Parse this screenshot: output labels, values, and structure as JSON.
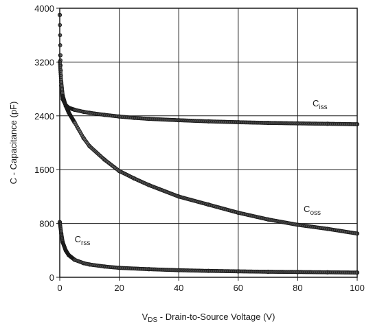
{
  "chart_data": {
    "type": "scatter",
    "xlabel": "V_DS - Drain-to-Source Voltage (V)",
    "ylabel": "C - Capacitance (pF)",
    "xlim": [
      0,
      100
    ],
    "ylim": [
      0,
      4000
    ],
    "x_ticks": [
      0,
      20,
      40,
      60,
      80,
      100
    ],
    "y_ticks": [
      0,
      800,
      1600,
      2400,
      3200,
      4000
    ],
    "grid": true,
    "series": [
      {
        "name": "Ciss",
        "label_main": "C",
        "label_sub": "iss",
        "color": "#1a1a1a",
        "points": [
          [
            0,
            3900
          ],
          [
            0.2,
            3300
          ],
          [
            0.5,
            2850
          ],
          [
            1,
            2650
          ],
          [
            2,
            2560
          ],
          [
            3,
            2520
          ],
          [
            5,
            2490
          ],
          [
            8,
            2460
          ],
          [
            10,
            2445
          ],
          [
            15,
            2415
          ],
          [
            20,
            2390
          ],
          [
            25,
            2370
          ],
          [
            30,
            2355
          ],
          [
            40,
            2335
          ],
          [
            50,
            2318
          ],
          [
            60,
            2305
          ],
          [
            70,
            2295
          ],
          [
            80,
            2288
          ],
          [
            90,
            2282
          ],
          [
            100,
            2275
          ]
        ]
      },
      {
        "name": "Coss",
        "label_main": "C",
        "label_sub": "oss",
        "color": "#1a1a1a",
        "points": [
          [
            0,
            3200
          ],
          [
            0.5,
            2900
          ],
          [
            1,
            2700
          ],
          [
            2,
            2550
          ],
          [
            3,
            2450
          ],
          [
            5,
            2300
          ],
          [
            8,
            2070
          ],
          [
            10,
            1950
          ],
          [
            15,
            1750
          ],
          [
            20,
            1580
          ],
          [
            25,
            1470
          ],
          [
            30,
            1370
          ],
          [
            40,
            1200
          ],
          [
            50,
            1080
          ],
          [
            60,
            960
          ],
          [
            70,
            860
          ],
          [
            80,
            780
          ],
          [
            90,
            720
          ],
          [
            100,
            650
          ]
        ]
      },
      {
        "name": "Crss",
        "label_main": "C",
        "label_sub": "rss",
        "color": "#1a1a1a",
        "points": [
          [
            0,
            820
          ],
          [
            0.5,
            650
          ],
          [
            1,
            520
          ],
          [
            2,
            400
          ],
          [
            3,
            330
          ],
          [
            5,
            260
          ],
          [
            8,
            210
          ],
          [
            10,
            190
          ],
          [
            15,
            160
          ],
          [
            20,
            140
          ],
          [
            30,
            120
          ],
          [
            40,
            105
          ],
          [
            50,
            95
          ],
          [
            60,
            88
          ],
          [
            70,
            82
          ],
          [
            80,
            78
          ],
          [
            90,
            74
          ],
          [
            100,
            70
          ]
        ]
      }
    ],
    "annotations": [
      {
        "series": "Ciss",
        "x": 85,
        "y": 2540
      },
      {
        "series": "Coss",
        "x": 82,
        "y": 970
      },
      {
        "series": "Crss",
        "x": 5,
        "y": 520
      }
    ]
  }
}
